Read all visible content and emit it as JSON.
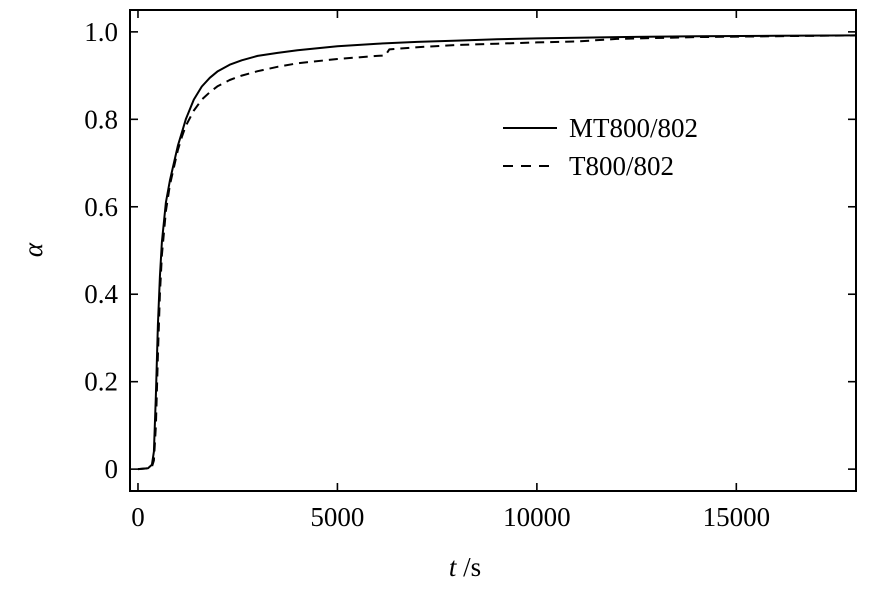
{
  "chart_data": {
    "type": "line",
    "title": "",
    "xlabel_var": "t",
    "xlabel_unit": " /s",
    "ylabel": "α",
    "xlim": [
      -200,
      18000
    ],
    "ylim": [
      -0.05,
      1.05
    ],
    "xticks": [
      0,
      5000,
      10000,
      15000
    ],
    "xtick_labels": [
      "0",
      "5000",
      "10000",
      "15000"
    ],
    "yticks": [
      0,
      0.2,
      0.4,
      0.6,
      0.8,
      1.0
    ],
    "ytick_labels": [
      "0",
      "0.2",
      "0.4",
      "0.6",
      "0.8",
      "1.0"
    ],
    "grid": false,
    "legend_position": "upper-right",
    "series": [
      {
        "name": "MT800/802",
        "style": "solid",
        "color": "#000000",
        "x": [
          0,
          250,
          350,
          400,
          450,
          500,
          550,
          600,
          700,
          800,
          900,
          1000,
          1100,
          1200,
          1400,
          1600,
          1800,
          2000,
          2300,
          2600,
          3000,
          3500,
          4000,
          5000,
          6000,
          7000,
          8000,
          9000,
          10000,
          12000,
          14000,
          16000,
          18000
        ],
        "y": [
          0.0,
          0.002,
          0.01,
          0.04,
          0.17,
          0.33,
          0.44,
          0.52,
          0.61,
          0.66,
          0.7,
          0.74,
          0.77,
          0.8,
          0.845,
          0.875,
          0.895,
          0.91,
          0.925,
          0.935,
          0.945,
          0.952,
          0.958,
          0.967,
          0.973,
          0.977,
          0.98,
          0.983,
          0.985,
          0.988,
          0.99,
          0.991,
          0.992
        ]
      },
      {
        "name": "T800/802",
        "style": "dashed",
        "color": "#000000",
        "x": [
          0,
          250,
          350,
          400,
          450,
          500,
          550,
          600,
          700,
          800,
          900,
          1000,
          1100,
          1200,
          1400,
          1600,
          1800,
          2000,
          2300,
          2600,
          3000,
          3500,
          4000,
          5000,
          6000,
          6200,
          6300,
          7000,
          8000,
          9000,
          10000,
          11000,
          12000,
          14000,
          16000,
          18000
        ],
        "y": [
          0.0,
          0.002,
          0.005,
          0.02,
          0.1,
          0.26,
          0.4,
          0.49,
          0.59,
          0.65,
          0.69,
          0.73,
          0.76,
          0.785,
          0.82,
          0.845,
          0.862,
          0.876,
          0.89,
          0.9,
          0.91,
          0.92,
          0.928,
          0.938,
          0.945,
          0.946,
          0.96,
          0.965,
          0.97,
          0.973,
          0.976,
          0.978,
          0.984,
          0.988,
          0.99,
          0.992
        ]
      }
    ]
  }
}
